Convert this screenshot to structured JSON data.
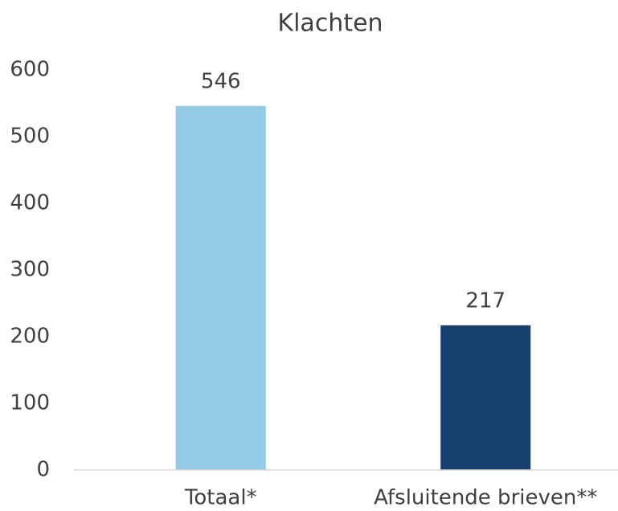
{
  "chart_data": {
    "type": "bar",
    "title": "Klachten",
    "categories": [
      "Totaal*",
      "Afsluitende brieven**"
    ],
    "values": [
      546,
      217
    ],
    "colors": [
      "#92cbe6",
      "#17406f"
    ],
    "ylim": [
      0,
      600
    ],
    "yticks": [
      0,
      100,
      200,
      300,
      400,
      500,
      600
    ],
    "grid": false,
    "data_labels": true
  }
}
